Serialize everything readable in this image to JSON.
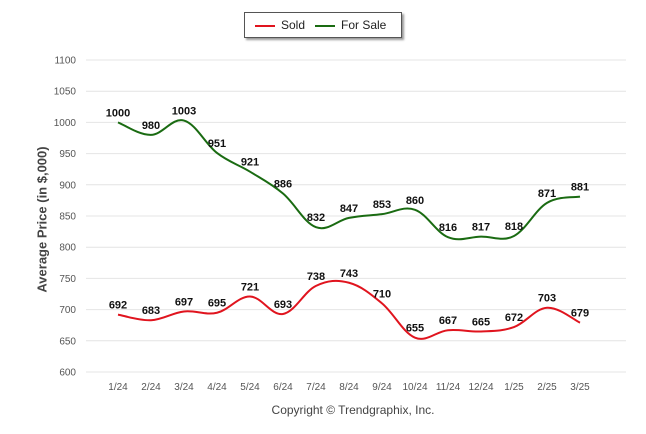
{
  "chart_data": {
    "type": "line",
    "categories": [
      "1/24",
      "2/24",
      "3/24",
      "4/24",
      "5/24",
      "6/24",
      "7/24",
      "8/24",
      "9/24",
      "10/24",
      "11/24",
      "12/24",
      "1/25",
      "2/25",
      "3/25"
    ],
    "series": [
      {
        "name": "Sold",
        "color": "#e0141e",
        "values": [
          692,
          683,
          697,
          695,
          721,
          693,
          738,
          743,
          710,
          655,
          667,
          665,
          672,
          703,
          679
        ]
      },
      {
        "name": "For Sale",
        "color": "#1a6b12",
        "values": [
          1000,
          980,
          1003,
          951,
          921,
          886,
          832,
          847,
          853,
          860,
          816,
          817,
          818,
          871,
          881
        ]
      }
    ],
    "ylabel": "Average Price (in $,000)",
    "ylim": [
      600,
      1100
    ],
    "yticks": [
      600,
      650,
      700,
      750,
      800,
      850,
      900,
      950,
      1000,
      1050,
      1100
    ],
    "grid": true,
    "legend_position": "top-center"
  },
  "footer": "Copyright © Trendgraphix, Inc."
}
